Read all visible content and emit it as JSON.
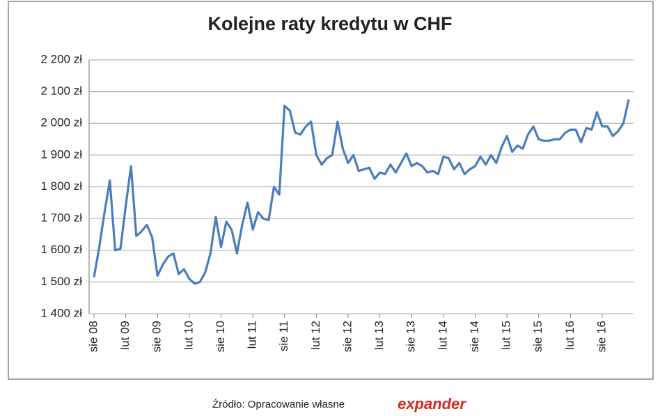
{
  "chart_data": {
    "type": "line",
    "title": "Kolejne raty kredytu w CHF",
    "categories": [
      "sie 08",
      null,
      null,
      null,
      null,
      null,
      "lut 09",
      null,
      null,
      null,
      null,
      null,
      "sie 09",
      null,
      null,
      null,
      null,
      null,
      "lut 10",
      null,
      null,
      null,
      null,
      null,
      "sie 10",
      null,
      null,
      null,
      null,
      null,
      "lut 11",
      null,
      null,
      null,
      null,
      null,
      "sie 11",
      null,
      null,
      null,
      null,
      null,
      "lut 12",
      null,
      null,
      null,
      null,
      null,
      "sie 12",
      null,
      null,
      null,
      null,
      null,
      "lut 13",
      null,
      null,
      null,
      null,
      null,
      "sie 13",
      null,
      null,
      null,
      null,
      null,
      "lut 14",
      null,
      null,
      null,
      null,
      null,
      "sie 14",
      null,
      null,
      null,
      null,
      null,
      "lut 15",
      null,
      null,
      null,
      null,
      null,
      "sie 15",
      null,
      null,
      null,
      null,
      null,
      "lut 16",
      null,
      null,
      null,
      null,
      null,
      "sie 16",
      null,
      null,
      null,
      null,
      null
    ],
    "values": [
      1515,
      1610,
      1720,
      1820,
      1600,
      1605,
      1740,
      1865,
      1645,
      1660,
      1680,
      1640,
      1520,
      1555,
      1580,
      1590,
      1525,
      1540,
      1510,
      1495,
      1500,
      1530,
      1590,
      1705,
      1610,
      1690,
      1665,
      1590,
      1680,
      1750,
      1665,
      1720,
      1700,
      1695,
      1800,
      1775,
      2055,
      2040,
      1970,
      1965,
      1990,
      2005,
      1900,
      1870,
      1890,
      1900,
      2005,
      1920,
      1875,
      1900,
      1850,
      1855,
      1860,
      1825,
      1845,
      1840,
      1870,
      1845,
      1875,
      1905,
      1865,
      1875,
      1865,
      1845,
      1850,
      1840,
      1895,
      1890,
      1855,
      1875,
      1840,
      1855,
      1865,
      1895,
      1870,
      1900,
      1875,
      1925,
      1960,
      1910,
      1930,
      1920,
      1965,
      1990,
      1950,
      1945,
      1945,
      1950,
      1950,
      1970,
      1980,
      1980,
      1940,
      1985,
      1980,
      2035,
      1990,
      1990,
      1960,
      1975,
      2000,
      2075
    ],
    "color": "#4a7ebb",
    "ylim": [
      1400,
      2200
    ],
    "yticks": [
      {
        "value": 1400,
        "label": "1 400 zł"
      },
      {
        "value": 1500,
        "label": "1 500 zł"
      },
      {
        "value": 1600,
        "label": "1 600 zł"
      },
      {
        "value": 1700,
        "label": "1 700 zł"
      },
      {
        "value": 1800,
        "label": "1 800 zł"
      },
      {
        "value": 1900,
        "label": "1 900 zł"
      },
      {
        "value": 2000,
        "label": "2 000 zł"
      },
      {
        "value": 2100,
        "label": "2 100 zł"
      },
      {
        "value": 2200,
        "label": "2 200 zł"
      }
    ],
    "grid": true,
    "source": "Źródło: Opracowanie własne",
    "logo": "expander"
  }
}
